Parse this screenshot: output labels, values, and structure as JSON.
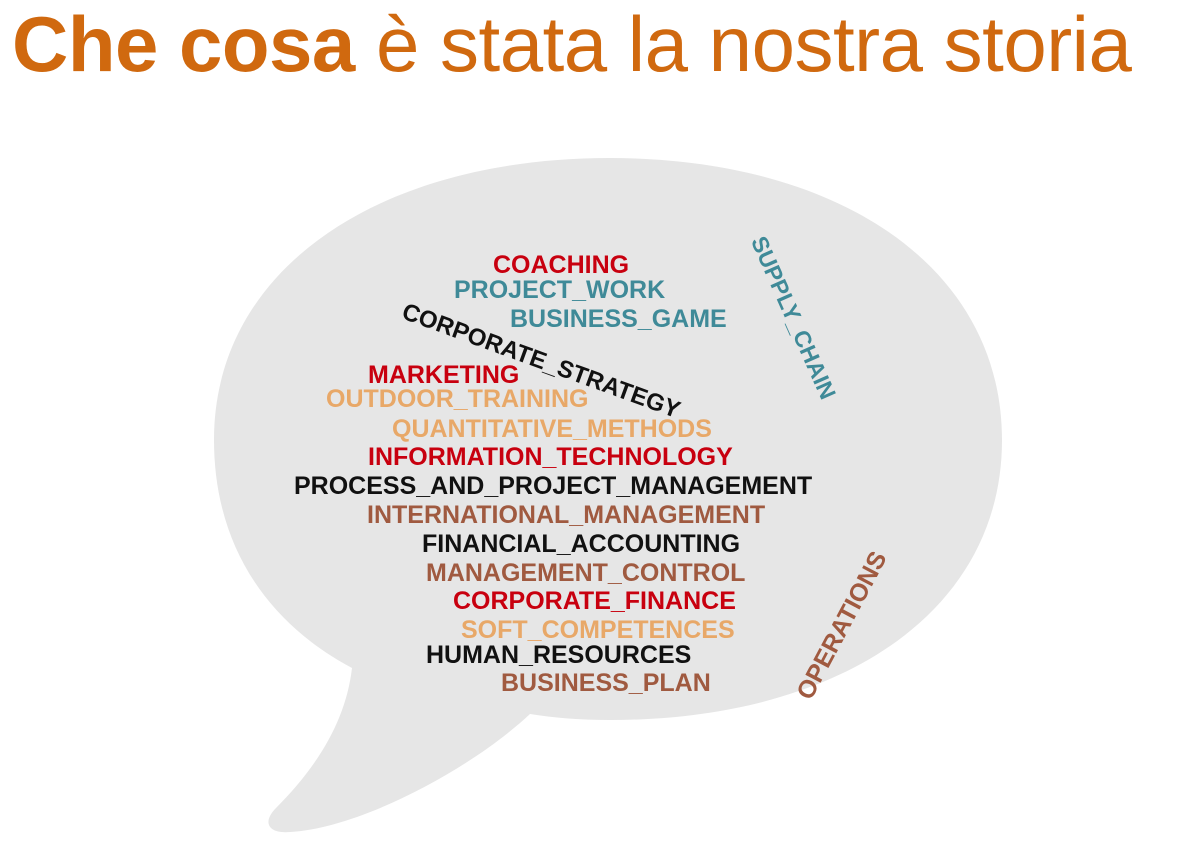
{
  "title": {
    "bold_part": "Che cosa",
    "normal_part": " è stata la nostra storia",
    "color": "#d0690f"
  },
  "bubble": {
    "fill": "#e6e6e6"
  },
  "colors": {
    "red": "#c8000f",
    "teal": "#3f8a98",
    "black": "#111111",
    "peach": "#e8a868",
    "brown": "#a05a40"
  },
  "words": {
    "coaching": "COACHING",
    "project_work": "PROJECT_WORK",
    "business_game": "BUSINESS_GAME",
    "supply_chain": "SUPPLY_CHAIN",
    "corporate_strategy": "CORPORATE_STRATEGY",
    "marketing": "MARKETING",
    "outdoor_training": "OUTDOOR_TRAINING",
    "quantitative_methods": "QUANTITATIVE_METHODS",
    "information_technology": "INFORMATION_TECHNOLOGY",
    "process_and_project_management": "PROCESS_AND_PROJECT_MANAGEMENT",
    "international_management": "INTERNATIONAL_MANAGEMENT",
    "financial_accounting": "FINANCIAL_ACCOUNTING",
    "management_control": "MANAGEMENT_CONTROL",
    "corporate_finance": "CORPORATE_FINANCE",
    "soft_competences": "SOFT_COMPETENCES",
    "human_resources": "HUMAN_RESOURCES",
    "business_plan": "BUSINESS_PLAN",
    "operations": "OPERATIONS"
  }
}
